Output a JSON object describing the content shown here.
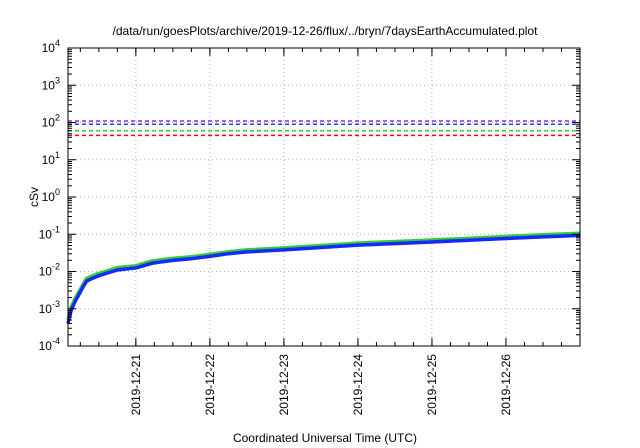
{
  "chart_data": {
    "type": "line",
    "title": "/data/run/goesPlots/archive/2019-12-26/flux/../bryn/7daysEarthAccumulated.plot",
    "xlabel": "Coordinated Universal Time (UTC)",
    "ylabel": "cSv",
    "yscale": "log",
    "ylim": [
      0.0001,
      10000
    ],
    "xlim": [
      "2019-12-20T02:00",
      "2019-12-27T00:00"
    ],
    "grid": true,
    "x_ticks": [
      "2019-12-21",
      "2019-12-22",
      "2019-12-23",
      "2019-12-24",
      "2019-12-25",
      "2019-12-26"
    ],
    "y_ticks": [
      {
        "value": 0.0001,
        "base": "10",
        "exp": "-4"
      },
      {
        "value": 0.001,
        "base": "10",
        "exp": "-3"
      },
      {
        "value": 0.01,
        "base": "10",
        "exp": "-2"
      },
      {
        "value": 0.1,
        "base": "10",
        "exp": "-1"
      },
      {
        "value": 1,
        "base": "10",
        "exp": "0"
      },
      {
        "value": 10,
        "base": "10",
        "exp": "1"
      },
      {
        "value": 100,
        "base": "10",
        "exp": "2"
      },
      {
        "value": 1000,
        "base": "10",
        "exp": "3"
      },
      {
        "value": 10000,
        "base": "10",
        "exp": "4"
      }
    ],
    "reference_lines": [
      {
        "value": 110,
        "color": "#8a2be2",
        "style": "dashed"
      },
      {
        "value": 90,
        "color": "#1f3fff",
        "style": "dashed"
      },
      {
        "value": 60,
        "color": "#33cc33",
        "style": "dashed"
      },
      {
        "value": 45,
        "color": "#ff0000",
        "style": "dashed"
      }
    ],
    "series": [
      {
        "color": "#33cc33",
        "width": 3.5,
        "points": [
          [
            "2019-12-20T02:00",
            0.0005
          ],
          [
            "2019-12-20T03:00",
            0.0011
          ],
          [
            "2019-12-20T04:30",
            0.002
          ],
          [
            "2019-12-20T06:00",
            0.0033
          ],
          [
            "2019-12-20T07:00",
            0.0047
          ],
          [
            "2019-12-20T08:00",
            0.0065
          ],
          [
            "2019-12-20T10:00",
            0.0077
          ],
          [
            "2019-12-20T12:00",
            0.0089
          ],
          [
            "2019-12-20T15:00",
            0.0106
          ],
          [
            "2019-12-20T18:00",
            0.0127
          ],
          [
            "2019-12-21T00:00",
            0.0143
          ],
          [
            "2019-12-21T05:00",
            0.019
          ],
          [
            "2019-12-21T08:00",
            0.0205
          ],
          [
            "2019-12-21T12:00",
            0.0225
          ],
          [
            "2019-12-21T18:00",
            0.025
          ],
          [
            "2019-12-22T00:00",
            0.029
          ],
          [
            "2019-12-22T06:00",
            0.034
          ],
          [
            "2019-12-22T12:00",
            0.038
          ],
          [
            "2019-12-23T00:00",
            0.043
          ],
          [
            "2019-12-23T12:00",
            0.05
          ],
          [
            "2019-12-24T00:00",
            0.058
          ],
          [
            "2019-12-24T12:00",
            0.064
          ],
          [
            "2019-12-25T00:00",
            0.07
          ],
          [
            "2019-12-25T12:00",
            0.078
          ],
          [
            "2019-12-26T00:00",
            0.087
          ],
          [
            "2019-12-26T12:00",
            0.097
          ],
          [
            "2019-12-27T00:00",
            0.106
          ]
        ]
      },
      {
        "color": "#1428ff",
        "width": 3.5,
        "points": [
          [
            "2019-12-20T02:00",
            0.0004
          ],
          [
            "2019-12-20T03:00",
            0.0009
          ],
          [
            "2019-12-20T04:30",
            0.0017
          ],
          [
            "2019-12-20T06:00",
            0.0028
          ],
          [
            "2019-12-20T07:00",
            0.004
          ],
          [
            "2019-12-20T08:00",
            0.0055
          ],
          [
            "2019-12-20T10:00",
            0.0066
          ],
          [
            "2019-12-20T12:00",
            0.0077
          ],
          [
            "2019-12-20T15:00",
            0.0092
          ],
          [
            "2019-12-20T18:00",
            0.011
          ],
          [
            "2019-12-21T00:00",
            0.0125
          ],
          [
            "2019-12-21T05:00",
            0.0165
          ],
          [
            "2019-12-21T08:00",
            0.018
          ],
          [
            "2019-12-21T12:00",
            0.0198
          ],
          [
            "2019-12-21T18:00",
            0.022
          ],
          [
            "2019-12-22T00:00",
            0.0255
          ],
          [
            "2019-12-22T06:00",
            0.03
          ],
          [
            "2019-12-22T12:00",
            0.0335
          ],
          [
            "2019-12-23T00:00",
            0.038
          ],
          [
            "2019-12-23T12:00",
            0.044
          ],
          [
            "2019-12-24T00:00",
            0.051
          ],
          [
            "2019-12-24T12:00",
            0.056
          ],
          [
            "2019-12-25T00:00",
            0.062
          ],
          [
            "2019-12-25T12:00",
            0.069
          ],
          [
            "2019-12-26T00:00",
            0.077
          ],
          [
            "2019-12-26T12:00",
            0.085
          ],
          [
            "2019-12-27T00:00",
            0.093
          ]
        ]
      }
    ]
  }
}
